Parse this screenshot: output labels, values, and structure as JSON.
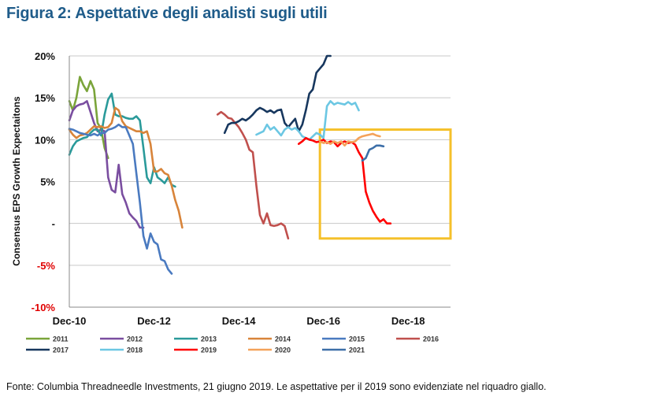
{
  "figure": {
    "title": "Figura 2: Aspettative degli analisti sugli utili",
    "source": "Fonte: Columbia Threadneedle Investments, 21 giugno 2019. Le aspettative per il 2019 sono evidenziate nel riquadro giallo."
  },
  "chart_data": {
    "type": "line",
    "title": "",
    "xlabel": "",
    "ylabel": "Consensus EPS Growth Expectaitons",
    "x_unit": "months since Dec-10",
    "x_range": [
      0,
      108
    ],
    "ylim": [
      -10,
      20
    ],
    "y_ticks": [
      20,
      15,
      10,
      5,
      0,
      -5,
      -10
    ],
    "y_tick_labels": [
      "20%",
      "15%",
      "10%",
      "5%",
      "-",
      "-5%",
      "-10%"
    ],
    "y_tick_colors": [
      "#111111",
      "#111111",
      "#111111",
      "#111111",
      "#111111",
      "#e00000",
      "#e00000"
    ],
    "x_ticks": [
      0,
      24,
      48,
      72,
      96
    ],
    "x_tick_labels": [
      "Dec-10",
      "Dec-12",
      "Dec-14",
      "Dec-16",
      "Dec-18"
    ],
    "grid": true,
    "legend_position": "bottom",
    "highlight": {
      "x0": 71,
      "x1": 108,
      "y0": -1.8,
      "y1": 11.2,
      "color": "#f5c02a"
    },
    "series": [
      {
        "name": "2011",
        "color": "#7aa43a",
        "points": [
          [
            0,
            14.6
          ],
          [
            1,
            13.5
          ],
          [
            2,
            15
          ],
          [
            3,
            17.5
          ],
          [
            4,
            16.5
          ],
          [
            5,
            15.8
          ],
          [
            6,
            17
          ],
          [
            7,
            16
          ],
          [
            8,
            12
          ],
          [
            9,
            11.3
          ],
          [
            10,
            9
          ],
          [
            11,
            7.8
          ]
        ]
      },
      {
        "name": "2012",
        "color": "#7a4ea0",
        "points": [
          [
            0,
            12.3
          ],
          [
            1,
            13.5
          ],
          [
            2,
            14
          ],
          [
            3,
            14.2
          ],
          [
            4,
            14.3
          ],
          [
            5,
            14.6
          ],
          [
            6,
            13.3
          ],
          [
            7,
            12
          ],
          [
            8,
            11
          ],
          [
            9,
            11.2
          ],
          [
            10,
            11
          ],
          [
            11,
            5.5
          ],
          [
            12,
            4
          ],
          [
            13,
            3.7
          ],
          [
            14,
            7
          ],
          [
            15,
            3.5
          ],
          [
            16,
            2.5
          ],
          [
            17,
            1.2
          ],
          [
            18,
            0.7
          ],
          [
            19,
            0.3
          ],
          [
            20,
            -0.5
          ],
          [
            21,
            -0.5
          ]
        ]
      },
      {
        "name": "2013",
        "color": "#2a9a9a",
        "points": [
          [
            0,
            8.2
          ],
          [
            1,
            9.2
          ],
          [
            2,
            9.8
          ],
          [
            3,
            10
          ],
          [
            4,
            10.2
          ],
          [
            5,
            10.3
          ],
          [
            6,
            10.8
          ],
          [
            7,
            11.2
          ],
          [
            8,
            11.2
          ],
          [
            9,
            10.5
          ],
          [
            10,
            13
          ],
          [
            11,
            14.8
          ],
          [
            12,
            15.5
          ],
          [
            13,
            13
          ],
          [
            14,
            12.8
          ],
          [
            15,
            12.8
          ],
          [
            16,
            12.6
          ],
          [
            17,
            12.5
          ],
          [
            18,
            12.5
          ],
          [
            19,
            12.8
          ],
          [
            20,
            12.3
          ],
          [
            21,
            9
          ],
          [
            22,
            5.5
          ],
          [
            23,
            4.8
          ],
          [
            24,
            6.7
          ],
          [
            25,
            5.5
          ],
          [
            26,
            5.2
          ],
          [
            27,
            4.8
          ],
          [
            28,
            5.5
          ],
          [
            29,
            4.6
          ],
          [
            30,
            4.4
          ]
        ]
      },
      {
        "name": "2014",
        "color": "#d8843a",
        "points": [
          [
            0,
            11.2
          ],
          [
            1,
            10.6
          ],
          [
            2,
            10.2
          ],
          [
            3,
            10.5
          ],
          [
            4,
            10.6
          ],
          [
            5,
            10.8
          ],
          [
            6,
            11.2
          ],
          [
            7,
            11.6
          ],
          [
            8,
            11.5
          ],
          [
            9,
            11.6
          ],
          [
            10,
            11.4
          ],
          [
            11,
            11.5
          ],
          [
            12,
            12
          ],
          [
            13,
            13.8
          ],
          [
            14,
            13.5
          ],
          [
            15,
            12.2
          ],
          [
            16,
            11.6
          ],
          [
            17,
            11.4
          ],
          [
            18,
            11.2
          ],
          [
            19,
            11
          ],
          [
            20,
            11
          ],
          [
            21,
            10.8
          ],
          [
            22,
            11
          ],
          [
            23,
            9.5
          ],
          [
            24,
            6.2
          ],
          [
            25,
            6.2
          ],
          [
            26,
            6.5
          ],
          [
            27,
            6
          ],
          [
            28,
            5.8
          ],
          [
            29,
            4.5
          ],
          [
            30,
            2.8
          ],
          [
            31,
            1.5
          ],
          [
            32,
            -0.5
          ]
        ]
      },
      {
        "name": "2015",
        "color": "#4a7ac0",
        "points": [
          [
            0,
            11.3
          ],
          [
            1,
            11.2
          ],
          [
            2,
            11
          ],
          [
            3,
            10.8
          ],
          [
            4,
            10.7
          ],
          [
            5,
            10.6
          ],
          [
            6,
            10.5
          ],
          [
            7,
            10.7
          ],
          [
            8,
            10.5
          ],
          [
            9,
            10.8
          ],
          [
            10,
            10.8
          ],
          [
            11,
            11.2
          ],
          [
            12,
            11.3
          ],
          [
            13,
            11.5
          ],
          [
            14,
            11.8
          ],
          [
            15,
            11.5
          ],
          [
            16,
            11.5
          ],
          [
            17,
            10.5
          ],
          [
            18,
            9.5
          ],
          [
            19,
            6
          ],
          [
            20,
            2.5
          ],
          [
            21,
            -1.5
          ],
          [
            22,
            -3
          ],
          [
            23,
            -1.2
          ],
          [
            24,
            -2.2
          ],
          [
            25,
            -2.5
          ],
          [
            26,
            -4.3
          ],
          [
            27,
            -4.5
          ],
          [
            28,
            -5.5
          ],
          [
            29,
            -6
          ]
        ]
      },
      {
        "name": "2016",
        "color": "#c0504d",
        "points": [
          [
            42,
            13
          ],
          [
            43,
            13.3
          ],
          [
            44,
            13
          ],
          [
            45,
            12.6
          ],
          [
            46,
            12.5
          ],
          [
            47,
            12
          ],
          [
            48,
            11.5
          ],
          [
            49,
            10.8
          ],
          [
            50,
            10
          ],
          [
            51,
            8.8
          ],
          [
            52,
            8.5
          ],
          [
            53,
            4.5
          ],
          [
            54,
            1
          ],
          [
            55,
            0
          ],
          [
            56,
            1.2
          ],
          [
            57,
            -0.2
          ],
          [
            58,
            -0.3
          ],
          [
            59,
            -0.2
          ],
          [
            60,
            0
          ],
          [
            61,
            -0.3
          ],
          [
            62,
            -1.8
          ]
        ]
      },
      {
        "name": "2017",
        "color": "#17375e",
        "points": [
          [
            44,
            10.8
          ],
          [
            45,
            11.8
          ],
          [
            46,
            12
          ],
          [
            47,
            12
          ],
          [
            48,
            12.2
          ],
          [
            49,
            12.5
          ],
          [
            50,
            12.3
          ],
          [
            51,
            12.6
          ],
          [
            52,
            13
          ],
          [
            53,
            13.5
          ],
          [
            54,
            13.8
          ],
          [
            55,
            13.6
          ],
          [
            56,
            13.3
          ],
          [
            57,
            13.5
          ],
          [
            58,
            13.2
          ],
          [
            59,
            13.5
          ],
          [
            60,
            13.6
          ],
          [
            61,
            12
          ],
          [
            62,
            11.5
          ],
          [
            63,
            12
          ],
          [
            64,
            12.5
          ],
          [
            65,
            11
          ],
          [
            66,
            11.8
          ],
          [
            67,
            13.5
          ],
          [
            68,
            15.5
          ],
          [
            69,
            16
          ],
          [
            70,
            18
          ],
          [
            71,
            18.5
          ],
          [
            72,
            19
          ],
          [
            73,
            20
          ],
          [
            74,
            20
          ]
        ]
      },
      {
        "name": "2018",
        "color": "#6cc7e3",
        "points": [
          [
            53,
            10.6
          ],
          [
            54,
            10.8
          ],
          [
            55,
            11
          ],
          [
            56,
            11.8
          ],
          [
            57,
            11.2
          ],
          [
            58,
            11.5
          ],
          [
            59,
            11
          ],
          [
            60,
            10.5
          ],
          [
            61,
            11.2
          ],
          [
            62,
            11.5
          ],
          [
            63,
            11.2
          ],
          [
            64,
            11.4
          ],
          [
            65,
            11
          ],
          [
            66,
            10.4
          ],
          [
            67,
            10.2
          ],
          [
            68,
            10
          ],
          [
            69,
            10.4
          ],
          [
            70,
            10.8
          ],
          [
            71,
            10.6
          ],
          [
            72,
            10.2
          ],
          [
            73,
            14
          ],
          [
            74,
            14.6
          ],
          [
            75,
            14.2
          ],
          [
            76,
            14.4
          ],
          [
            77,
            14.3
          ],
          [
            78,
            14.2
          ],
          [
            79,
            14.5
          ],
          [
            80,
            14.2
          ],
          [
            81,
            14.4
          ],
          [
            82,
            13.5
          ]
        ]
      },
      {
        "name": "2019",
        "color": "#ff0000",
        "points": [
          [
            65,
            9.5
          ],
          [
            66,
            9.8
          ],
          [
            67,
            10.2
          ],
          [
            68,
            10
          ],
          [
            69,
            9.9
          ],
          [
            70,
            9.7
          ],
          [
            71,
            9.8
          ],
          [
            72,
            10
          ],
          [
            73,
            9.6
          ],
          [
            74,
            9.8
          ],
          [
            75,
            9.7
          ],
          [
            76,
            9.2
          ],
          [
            77,
            9.6
          ],
          [
            78,
            9.8
          ],
          [
            79,
            9.6
          ],
          [
            80,
            9.7
          ],
          [
            81,
            9.4
          ],
          [
            82,
            8.5
          ],
          [
            83,
            7.8
          ],
          [
            84,
            3.8
          ],
          [
            85,
            2.5
          ],
          [
            86,
            1.5
          ],
          [
            87,
            0.8
          ],
          [
            88,
            0.2
          ],
          [
            89,
            0.5
          ],
          [
            90,
            0
          ],
          [
            91,
            0
          ]
        ]
      },
      {
        "name": "2020",
        "color": "#f4a25a",
        "points": [
          [
            71,
            9.8
          ],
          [
            72,
            9.6
          ],
          [
            73,
            9.7
          ],
          [
            74,
            9.5
          ],
          [
            75,
            9.8
          ],
          [
            76,
            9.6
          ],
          [
            77,
            9.8
          ],
          [
            78,
            9.3
          ],
          [
            79,
            9.8
          ],
          [
            80,
            9.7
          ],
          [
            81,
            9.8
          ],
          [
            82,
            10.2
          ],
          [
            83,
            10.4
          ],
          [
            84,
            10.5
          ],
          [
            85,
            10.6
          ],
          [
            86,
            10.7
          ],
          [
            87,
            10.5
          ],
          [
            88,
            10.4
          ]
        ]
      },
      {
        "name": "2021",
        "color": "#3d6fa8",
        "points": [
          [
            83,
            7.5
          ],
          [
            84,
            7.8
          ],
          [
            85,
            8.8
          ],
          [
            86,
            9
          ],
          [
            87,
            9.3
          ],
          [
            88,
            9.3
          ],
          [
            89,
            9.2
          ]
        ]
      }
    ]
  }
}
